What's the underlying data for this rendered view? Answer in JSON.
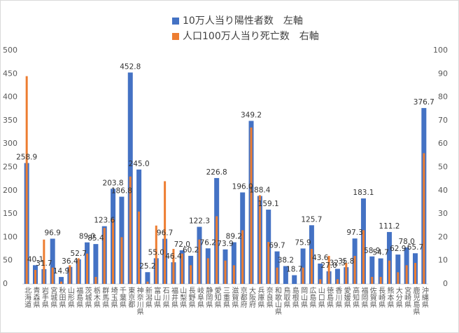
{
  "chart_data": {
    "type": "bar",
    "categories": [
      "北海道",
      "青森県",
      "岩手県",
      "宮城県",
      "秋田県",
      "山形県",
      "福島県",
      "茨城県",
      "栃木県",
      "群馬県",
      "埼玉県",
      "千葉県",
      "東京都",
      "神奈川県",
      "新潟県",
      "富山県",
      "石川県",
      "福井県",
      "山梨県",
      "長野県",
      "岐阜県",
      "静岡県",
      "愛知県",
      "三重県",
      "滋賀県",
      "京都府",
      "大阪府",
      "兵庫県",
      "奈良県",
      "和歌山県",
      "鳥取県",
      "島根県",
      "岡山県",
      "広島県",
      "山口県",
      "徳島県",
      "香川県",
      "愛媛県",
      "高知県",
      "福岡県",
      "佐賀県",
      "長崎県",
      "熊本県",
      "大分県",
      "宮崎県",
      "鹿児島県",
      "沖縄県"
    ],
    "series": [
      {
        "name": "10万人当り陽性者数　左軸",
        "color": "#4472c4",
        "axis": "y",
        "values": [
          258.9,
          40.1,
          31.7,
          96.9,
          14.9,
          36.4,
          52.7,
          89.0,
          85.4,
          123.6,
          203.8,
          186.8,
          452.8,
          245.0,
          25.2,
          55.0,
          96.7,
          46.4,
          72.0,
          60.2,
          122.3,
          76.2,
          226.8,
          73.9,
          89.2,
          196.0,
          349.2,
          188.4,
          159.1,
          69.7,
          38.2,
          18.7,
          75.9,
          125.7,
          43.6,
          27.0,
          32.3,
          35.8,
          97.3,
          183.1,
          58.9,
          54.7,
          111.2,
          62.9,
          78.0,
          65.7,
          376.7
        ],
        "value_labels": [
          "258.9",
          "40.1",
          "31.7",
          "96.9",
          "14.9",
          "36.4",
          "52.7",
          "89.0",
          "85.4",
          "123.6",
          "203.8",
          "186.8",
          "452.8",
          "245.0",
          "25.2",
          "55.0",
          "96.7",
          "46.4",
          "72.0",
          "60.2",
          "122.3",
          "76.2",
          "226.8",
          "73.9",
          "89.2",
          "196.0",
          "349.2",
          "188.4",
          "159.1",
          "69.7",
          "38.2",
          "18.7",
          "75.9",
          "125.7",
          "43.6",
          "27.0",
          "32.3",
          "35.8",
          "97.3",
          "183.1",
          "58.9",
          "54.7",
          "111.2",
          "62.9",
          "78.0",
          "65.7",
          "376.7"
        ]
      },
      {
        "name": "人口100万人当り死亡数　右軸",
        "color": "#ed7d31",
        "axis": "y2",
        "values": [
          89,
          6,
          19,
          7,
          1,
          8,
          11,
          13,
          3,
          24,
          28,
          20,
          46,
          31,
          1,
          25,
          44,
          15,
          13,
          8,
          19,
          11,
          29,
          10,
          8,
          23,
          67,
          38,
          18,
          7,
          0,
          0,
          7,
          15,
          2,
          12,
          2,
          9,
          12,
          23,
          3,
          3,
          10,
          5,
          8,
          9,
          56
        ]
      }
    ],
    "ylim": [
      0,
      500
    ],
    "yticks": [
      0,
      50,
      100,
      150,
      200,
      250,
      300,
      350,
      400,
      450,
      500
    ],
    "y2lim": [
      0,
      100
    ],
    "y2ticks": [
      0,
      10,
      20,
      30,
      40,
      50,
      60,
      70,
      80,
      90,
      100
    ],
    "grid": false,
    "legend": "top"
  }
}
